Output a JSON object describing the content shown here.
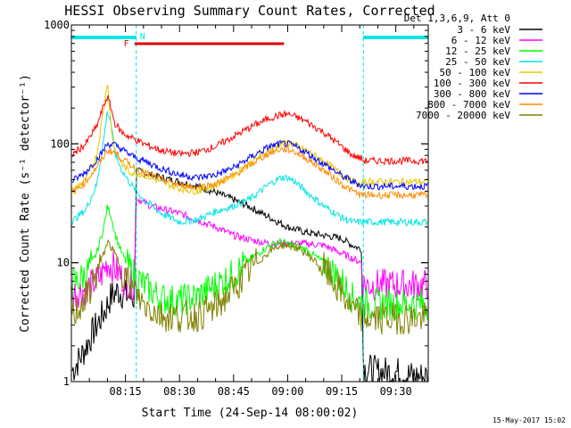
{
  "chart_data": {
    "type": "line",
    "title": "HESSI Observing Summary Count Rates, Corrected",
    "xlabel": "Start Time (24-Sep-14 08:00:02)",
    "ylabel": "Corrected Count Rate (s⁻¹ detector⁻¹)",
    "x_unit": "minutes after 08:00:02",
    "xlim": [
      0,
      99
    ],
    "ylim": [
      1,
      1000
    ],
    "y_scale": "log",
    "x_tick_labels": [
      {
        "x": 15,
        "label": "08:15"
      },
      {
        "x": 30,
        "label": "08:30"
      },
      {
        "x": 45,
        "label": "08:45"
      },
      {
        "x": 60,
        "label": "09:00"
      },
      {
        "x": 75,
        "label": "09:15"
      },
      {
        "x": 90,
        "label": "09:30"
      }
    ],
    "y_tick_labels": [
      {
        "y": 1,
        "label": "1"
      },
      {
        "y": 10,
        "label": "10"
      },
      {
        "y": 100,
        "label": "100"
      },
      {
        "y": 1000,
        "label": "1000"
      }
    ],
    "legend_title": "Det 1,3,6,9, Att 0",
    "legend_placement": "right, outside plot",
    "grid": false,
    "night_intervals": [
      [
        0,
        18
      ],
      [
        81,
        99
      ]
    ],
    "night_bar_color": "#00e5e5",
    "flare_flag": {
      "label": "F",
      "start": 17.5,
      "end": 59,
      "color": "#e00000"
    },
    "night_flag_label": "N",
    "series": [
      {
        "name": "3 - 6 keV",
        "color": "#000000",
        "x": [
          0,
          3,
          6,
          9,
          11,
          13,
          15,
          17.5,
          18,
          20,
          25,
          30,
          35,
          40,
          45,
          50,
          55,
          60,
          65,
          70,
          75,
          78,
          80.5,
          81,
          85,
          90,
          95,
          99
        ],
        "y": [
          1.2,
          1.7,
          2.6,
          3.8,
          5.2,
          5.8,
          5.4,
          5.0,
          60,
          57,
          52,
          48,
          44,
          39,
          34,
          29,
          24,
          20,
          18,
          17,
          16,
          14,
          13,
          1.3,
          1.2,
          1.2,
          1.1,
          1.1
        ]
      },
      {
        "name": "6 - 12 keV",
        "color": "#ff00ff",
        "x": [
          0,
          4,
          8,
          10,
          12,
          14,
          17.5,
          18,
          22,
          30,
          40,
          45,
          50,
          55,
          60,
          65,
          70,
          75,
          80.5,
          81,
          88,
          95,
          99
        ],
        "y": [
          5.5,
          6.0,
          7.5,
          10,
          9.0,
          7.5,
          6.5,
          35,
          30,
          26,
          20,
          17,
          15.5,
          14.5,
          14.5,
          14.5,
          14,
          12,
          10,
          6.5,
          6.5,
          6.5,
          6.5
        ]
      },
      {
        "name": "12 - 25 keV",
        "color": "#00ff00",
        "x": [
          0,
          4,
          7,
          9,
          10,
          11,
          12,
          14,
          16,
          20,
          25,
          30,
          35,
          40,
          45,
          50,
          55,
          58,
          60,
          65,
          70,
          75,
          78,
          80.5,
          81,
          85,
          90,
          95,
          99
        ],
        "y": [
          6.5,
          8,
          12,
          20,
          30,
          25,
          18,
          12,
          9,
          6.5,
          5,
          4.8,
          5.2,
          6.5,
          8,
          11,
          14,
          15,
          14.5,
          13,
          10,
          7,
          5,
          4.6,
          4.5,
          4.5,
          4.5,
          4.5,
          4.5
        ]
      },
      {
        "name": "25 - 50 keV",
        "color": "#00e5e5",
        "x": [
          0,
          4,
          7,
          9,
          10,
          11,
          12,
          14,
          16,
          18,
          20,
          25,
          30,
          35,
          40,
          45,
          50,
          55,
          58,
          60,
          62,
          65,
          70,
          75,
          78,
          80.5,
          81,
          85,
          90,
          95,
          99
        ],
        "y": [
          22,
          28,
          45,
          110,
          190,
          150,
          85,
          60,
          48,
          40,
          34,
          26,
          22,
          23,
          27,
          30,
          35,
          46,
          52,
          52,
          48,
          40,
          30,
          24,
          22,
          22,
          22,
          22,
          22,
          22,
          22
        ]
      },
      {
        "name": "50 - 100 keV",
        "color": "#e5c800",
        "x": [
          0,
          4,
          7,
          9,
          10,
          11,
          12,
          14,
          16,
          20,
          25,
          30,
          35,
          40,
          45,
          50,
          55,
          58,
          60,
          62,
          65,
          70,
          75,
          80.5,
          81,
          85,
          90,
          95,
          99
        ],
        "y": [
          40,
          50,
          80,
          200,
          350,
          140,
          90,
          68,
          58,
          55,
          48,
          42,
          40,
          45,
          55,
          70,
          88,
          100,
          102,
          98,
          88,
          72,
          55,
          44,
          48,
          48,
          48,
          48,
          48
        ]
      },
      {
        "name": "100 - 300 keV",
        "color": "#ff0000",
        "x": [
          0,
          4,
          7,
          9,
          10,
          11,
          12,
          14,
          16,
          18,
          20,
          25,
          30,
          35,
          40,
          45,
          50,
          55,
          58,
          60,
          62,
          65,
          70,
          75,
          78,
          80.5,
          81,
          85,
          90,
          95,
          99
        ],
        "y": [
          80,
          100,
          140,
          210,
          250,
          200,
          150,
          125,
          115,
          108,
          100,
          88,
          82,
          85,
          95,
          115,
          140,
          165,
          175,
          178,
          170,
          155,
          125,
          95,
          80,
          75,
          72,
          72,
          72,
          72,
          72
        ]
      },
      {
        "name": "300 - 800 keV",
        "color": "#0000ff",
        "x": [
          0,
          4,
          8,
          10,
          12,
          14,
          16,
          18,
          20,
          25,
          30,
          35,
          40,
          45,
          50,
          55,
          58,
          60,
          62,
          65,
          70,
          75,
          78,
          80.5,
          81,
          85,
          90,
          95,
          99
        ],
        "y": [
          48,
          58,
          80,
          100,
          98,
          90,
          82,
          76,
          72,
          62,
          55,
          52,
          55,
          63,
          78,
          95,
          100,
          100,
          95,
          85,
          68,
          54,
          48,
          45,
          44,
          44,
          44,
          44,
          44
        ]
      },
      {
        "name": "800 - 7000 keV",
        "color": "#ff8c00",
        "x": [
          0,
          4,
          8,
          10,
          12,
          14,
          16,
          18,
          20,
          25,
          30,
          35,
          40,
          45,
          50,
          55,
          58,
          60,
          62,
          65,
          70,
          75,
          78,
          80.5,
          81,
          85,
          90,
          95,
          99
        ],
        "y": [
          38,
          48,
          70,
          88,
          85,
          75,
          68,
          62,
          58,
          50,
          45,
          43,
          46,
          54,
          68,
          84,
          90,
          90,
          86,
          76,
          60,
          46,
          40,
          37,
          37,
          37,
          37,
          37,
          37
        ]
      },
      {
        "name": "7000 - 20000 keV",
        "color": "#808000",
        "x": [
          0,
          4,
          7,
          9,
          10,
          11,
          12,
          14,
          16,
          20,
          25,
          30,
          35,
          40,
          45,
          50,
          55,
          58,
          60,
          62,
          65,
          70,
          75,
          78,
          80.5,
          81,
          85,
          90,
          95,
          99
        ],
        "y": [
          3.5,
          5,
          8,
          12,
          15,
          13.5,
          12,
          9,
          6.5,
          4.5,
          3.6,
          3.5,
          3.6,
          4.2,
          6,
          9,
          12.5,
          14,
          14,
          13.5,
          12,
          9,
          5.5,
          4,
          3.5,
          3.4,
          3.4,
          3.4,
          3.4,
          3.4
        ]
      }
    ]
  },
  "footer": {
    "generated": "15-May-2017 15:02"
  }
}
